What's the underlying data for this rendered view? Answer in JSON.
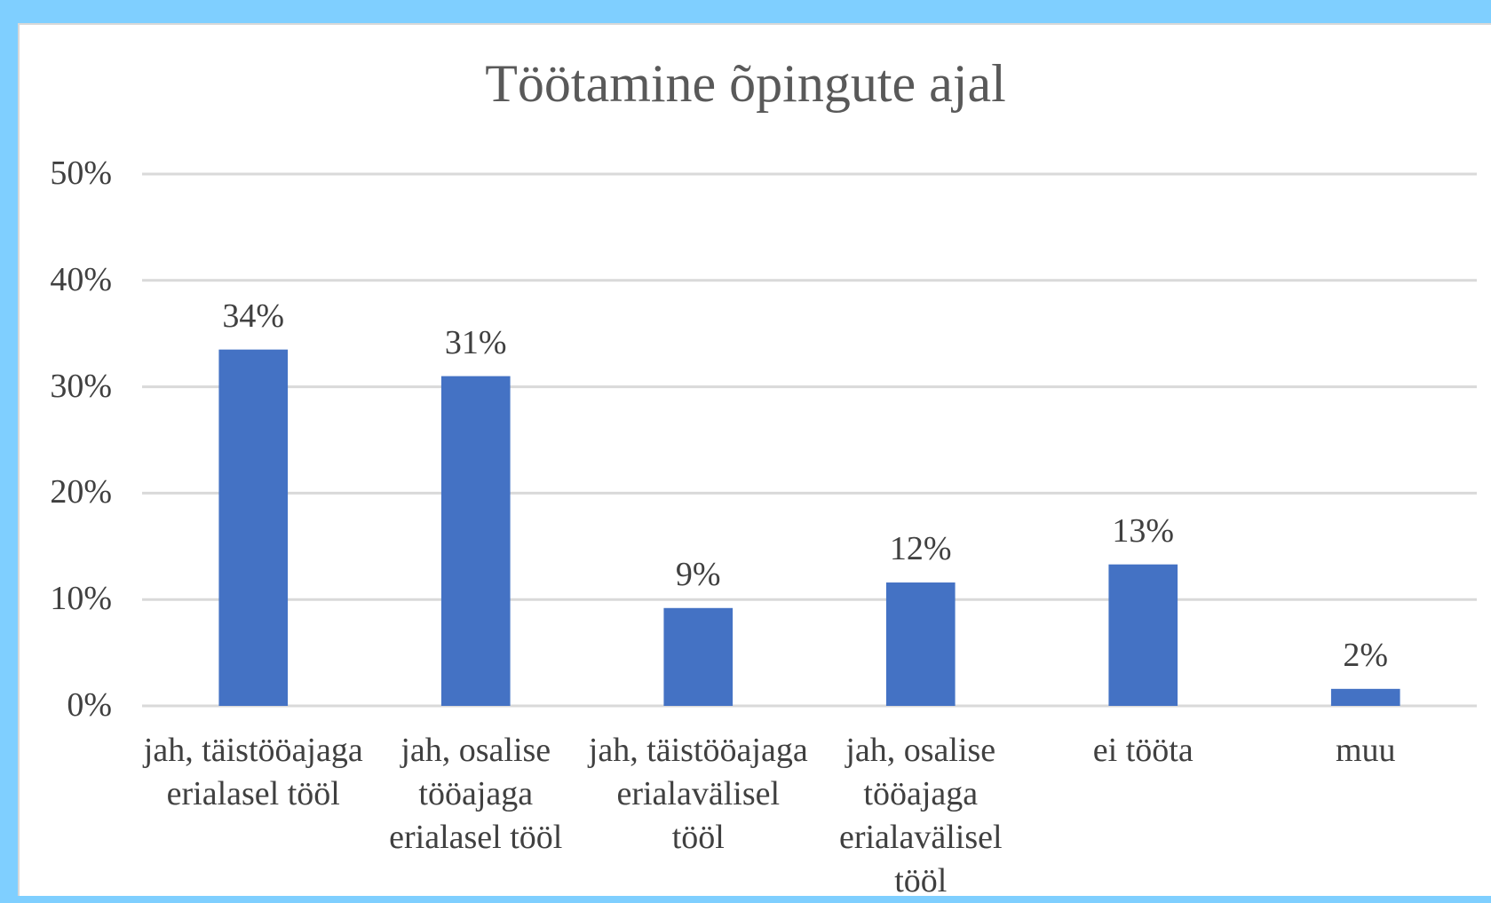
{
  "chart_data": {
    "type": "bar",
    "title": "Töötamine õpingute ajal",
    "categories": [
      "jah, täistööajaga erialasel tööl",
      "jah, osalise tööajaga erialasel tööl",
      "jah, täistööajaga erialavälisel tööl",
      "jah, osalise tööajaga erialavälisel tööl",
      "ei tööta",
      "muu"
    ],
    "values": [
      33.5,
      31,
      9.2,
      11.6,
      13.3,
      1.6
    ],
    "value_labels": [
      "34%",
      "31%",
      "9%",
      "12%",
      "13%",
      "2%"
    ],
    "color": "#4472c4",
    "ylim": [
      0,
      50
    ],
    "yticks": [
      {
        "value": 0,
        "label": "0%"
      },
      {
        "value": 10,
        "label": "10%"
      },
      {
        "value": 20,
        "label": "20%"
      },
      {
        "value": 30,
        "label": "30%"
      },
      {
        "value": 40,
        "label": "40%"
      },
      {
        "value": 50,
        "label": "50%"
      }
    ],
    "grid": true
  }
}
